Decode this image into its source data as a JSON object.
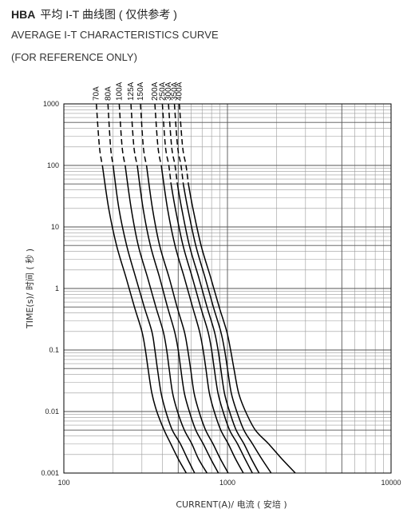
{
  "header": {
    "model": "HBA",
    "title_cn": "平均 I-T 曲线图 ( 仅供参考 )",
    "subtitle": "AVERAGE I-T CHARACTERISTICS CURVE",
    "note": "(FOR REFERENCE ONLY)"
  },
  "chart_data": {
    "type": "line",
    "xlabel": "CURRENT(A)/ 电流 ( 安培 )",
    "ylabel": "TIME(s)/ 时间 ( 秒 )",
    "xscale": "log",
    "yscale": "log",
    "xlim": [
      100,
      10000
    ],
    "ylim": [
      0.001,
      1000
    ],
    "x_ticks": [
      {
        "value": 100,
        "label": "100"
      },
      {
        "value": 1000,
        "label": "1000"
      },
      {
        "value": 10000,
        "label": "10000"
      }
    ],
    "y_ticks": [
      {
        "value": 1000,
        "label": "1000"
      },
      {
        "value": 100,
        "label": "100"
      },
      {
        "value": 10,
        "label": "10"
      },
      {
        "value": 1,
        "label": "1"
      },
      {
        "value": 0.1,
        "label": "0.1"
      },
      {
        "value": 0.01,
        "label": "0.01"
      },
      {
        "value": 0.001,
        "label": "0.001"
      }
    ],
    "grid": true,
    "series": [
      {
        "name": "70A",
        "dashed_until": 100,
        "points": [
          [
            158,
            1000
          ],
          [
            165,
            200
          ],
          [
            172,
            100
          ],
          [
            188,
            20
          ],
          [
            210,
            5
          ],
          [
            240,
            1.5
          ],
          [
            270,
            0.5
          ],
          [
            300,
            0.2
          ],
          [
            315,
            0.1
          ],
          [
            327,
            0.05
          ],
          [
            345,
            0.02
          ],
          [
            370,
            0.01
          ],
          [
            410,
            0.005
          ],
          [
            450,
            0.003
          ],
          [
            500,
            0.0017
          ],
          [
            560,
            0.001
          ]
        ]
      },
      {
        "name": "80A",
        "dashed_until": 100,
        "points": [
          [
            186,
            1000
          ],
          [
            193,
            200
          ],
          [
            200,
            100
          ],
          [
            217,
            20
          ],
          [
            242,
            5
          ],
          [
            275,
            1.5
          ],
          [
            310,
            0.5
          ],
          [
            345,
            0.2
          ],
          [
            360,
            0.1
          ],
          [
            373,
            0.05
          ],
          [
            393,
            0.02
          ],
          [
            420,
            0.01
          ],
          [
            460,
            0.005
          ],
          [
            515,
            0.003
          ],
          [
            570,
            0.0017
          ],
          [
            630,
            0.001
          ]
        ]
      },
      {
        "name": "100A",
        "dashed_until": 100,
        "points": [
          [
            218,
            1000
          ],
          [
            227,
            200
          ],
          [
            237,
            100
          ],
          [
            258,
            20
          ],
          [
            285,
            5
          ],
          [
            325,
            1.5
          ],
          [
            365,
            0.5
          ],
          [
            405,
            0.2
          ],
          [
            425,
            0.1
          ],
          [
            440,
            0.05
          ],
          [
            462,
            0.02
          ],
          [
            495,
            0.01
          ],
          [
            545,
            0.005
          ],
          [
            605,
            0.003
          ],
          [
            665,
            0.0017
          ],
          [
            750,
            0.001
          ]
        ]
      },
      {
        "name": "125A",
        "dashed_until": 100,
        "points": [
          [
            257,
            1000
          ],
          [
            268,
            200
          ],
          [
            281,
            100
          ],
          [
            305,
            20
          ],
          [
            338,
            5
          ],
          [
            385,
            1.5
          ],
          [
            430,
            0.5
          ],
          [
            475,
            0.2
          ],
          [
            500,
            0.1
          ],
          [
            518,
            0.05
          ],
          [
            545,
            0.02
          ],
          [
            585,
            0.01
          ],
          [
            640,
            0.005
          ],
          [
            710,
            0.003
          ],
          [
            790,
            0.0017
          ],
          [
            880,
            0.001
          ]
        ]
      },
      {
        "name": "150A",
        "dashed_until": 100,
        "points": [
          [
            294,
            1000
          ],
          [
            306,
            200
          ],
          [
            320,
            100
          ],
          [
            348,
            20
          ],
          [
            385,
            5
          ],
          [
            440,
            1.5
          ],
          [
            492,
            0.5
          ],
          [
            545,
            0.2
          ],
          [
            572,
            0.1
          ],
          [
            595,
            0.05
          ],
          [
            625,
            0.02
          ],
          [
            670,
            0.01
          ],
          [
            735,
            0.005
          ],
          [
            815,
            0.003
          ],
          [
            905,
            0.0017
          ],
          [
            1010,
            0.001
          ]
        ]
      },
      {
        "name": "200A",
        "dashed_until": 100,
        "points": [
          [
            360,
            1000
          ],
          [
            376,
            200
          ],
          [
            394,
            100
          ],
          [
            430,
            20
          ],
          [
            478,
            5
          ],
          [
            545,
            1.5
          ],
          [
            612,
            0.5
          ],
          [
            675,
            0.2
          ],
          [
            710,
            0.1
          ],
          [
            738,
            0.05
          ],
          [
            775,
            0.02
          ],
          [
            830,
            0.01
          ],
          [
            910,
            0.005
          ],
          [
            1010,
            0.003
          ],
          [
            1120,
            0.0017
          ],
          [
            1250,
            0.001
          ]
        ]
      },
      {
        "name": "250A",
        "dashed_until": 50,
        "points": [
          [
            400,
            1000
          ],
          [
            418,
            200
          ],
          [
            438,
            100
          ],
          [
            452,
            50
          ],
          [
            480,
            20
          ],
          [
            535,
            5
          ],
          [
            610,
            1.5
          ],
          [
            685,
            0.5
          ],
          [
            760,
            0.2
          ],
          [
            800,
            0.1
          ],
          [
            830,
            0.05
          ],
          [
            875,
            0.02
          ],
          [
            940,
            0.01
          ],
          [
            1030,
            0.005
          ],
          [
            1150,
            0.003
          ],
          [
            1280,
            0.0017
          ],
          [
            1420,
            0.001
          ]
        ]
      },
      {
        "name": "300A",
        "dashed_until": 50,
        "points": [
          [
            436,
            1000
          ],
          [
            456,
            200
          ],
          [
            478,
            100
          ],
          [
            494,
            50
          ],
          [
            525,
            20
          ],
          [
            585,
            5
          ],
          [
            668,
            1.5
          ],
          [
            750,
            0.5
          ],
          [
            832,
            0.2
          ],
          [
            876,
            0.1
          ],
          [
            910,
            0.05
          ],
          [
            958,
            0.02
          ],
          [
            1030,
            0.01
          ],
          [
            1130,
            0.005
          ],
          [
            1260,
            0.003
          ],
          [
            1400,
            0.0017
          ],
          [
            1560,
            0.001
          ]
        ]
      },
      {
        "name": "350A",
        "dashed_until": 50,
        "points": [
          [
            474,
            1000
          ],
          [
            496,
            200
          ],
          [
            520,
            100
          ],
          [
            537,
            50
          ],
          [
            572,
            20
          ],
          [
            640,
            5
          ],
          [
            730,
            1.5
          ],
          [
            820,
            0.5
          ],
          [
            910,
            0.2
          ],
          [
            960,
            0.1
          ],
          [
            1000,
            0.05
          ],
          [
            1055,
            0.02
          ],
          [
            1140,
            0.01
          ],
          [
            1260,
            0.005
          ],
          [
            1420,
            0.003
          ],
          [
            1620,
            0.0017
          ],
          [
            1850,
            0.001
          ]
        ]
      },
      {
        "name": "400A",
        "dashed_until": 50,
        "points": [
          [
            508,
            1000
          ],
          [
            532,
            200
          ],
          [
            558,
            100
          ],
          [
            577,
            50
          ],
          [
            615,
            20
          ],
          [
            690,
            5
          ],
          [
            790,
            1.5
          ],
          [
            890,
            0.5
          ],
          [
            990,
            0.2
          ],
          [
            1045,
            0.1
          ],
          [
            1095,
            0.05
          ],
          [
            1170,
            0.02
          ],
          [
            1290,
            0.01
          ],
          [
            1480,
            0.005
          ],
          [
            1780,
            0.003
          ],
          [
            2150,
            0.0017
          ],
          [
            2600,
            0.001
          ]
        ]
      }
    ]
  }
}
